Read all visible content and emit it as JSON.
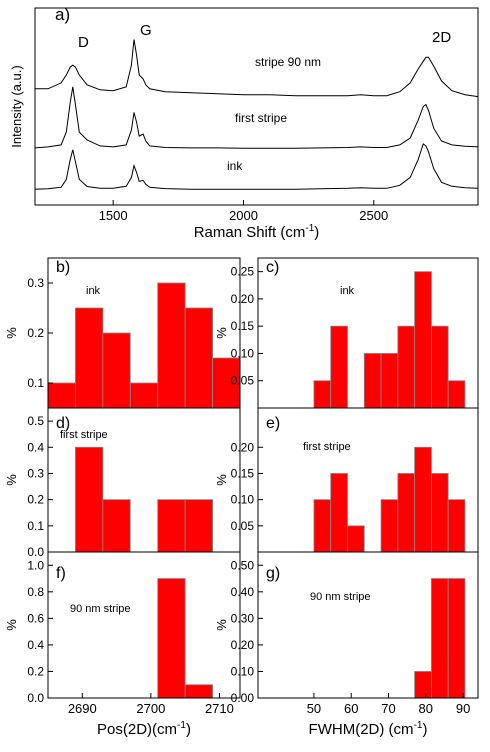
{
  "chart_data": [
    {
      "type": "line",
      "annotations": [
        "a)",
        "D",
        "G",
        "2D"
      ],
      "ylabel": "Intensity (a.u.)",
      "xlabel": [
        "Raman Shift (cm",
        "-1",
        ")"
      ],
      "x": [
        1200,
        1250,
        1300,
        1320,
        1335,
        1345,
        1355,
        1370,
        1400,
        1450,
        1500,
        1550,
        1570,
        1580,
        1590,
        1600,
        1615,
        1625,
        1640,
        1700,
        1800,
        1900,
        2000,
        2100,
        2200,
        2300,
        2400,
        2450,
        2500,
        2550,
        2600,
        2640,
        2670,
        2690,
        2700,
        2710,
        2730,
        2760,
        2800,
        2850,
        2900
      ],
      "series": [
        {
          "name": "stripe 90 nm",
          "color": "#000000",
          "values": [
            5.9,
            5.9,
            6.2,
            6.6,
            7.0,
            7.1,
            7.0,
            6.6,
            6.1,
            5.85,
            5.8,
            6.0,
            7.1,
            8.4,
            7.6,
            6.6,
            6.4,
            6.1,
            5.9,
            5.75,
            5.7,
            5.65,
            5.6,
            5.6,
            5.55,
            5.55,
            5.55,
            5.6,
            5.55,
            5.55,
            5.75,
            6.2,
            6.9,
            7.3,
            7.5,
            7.5,
            7.05,
            6.3,
            5.8,
            5.6,
            5.5
          ]
        },
        {
          "name": "first stripe",
          "color": "#000000",
          "values": [
            2.9,
            2.95,
            3.05,
            3.7,
            5.2,
            6.0,
            5.1,
            3.7,
            3.3,
            3.0,
            2.95,
            3.05,
            3.8,
            4.7,
            4.2,
            3.5,
            3.6,
            3.25,
            3.0,
            2.92,
            2.9,
            2.9,
            2.88,
            2.88,
            2.88,
            2.9,
            2.92,
            2.95,
            2.92,
            2.92,
            3.05,
            3.4,
            4.3,
            5.0,
            5.1,
            4.8,
            3.9,
            3.25,
            3.05,
            2.98,
            2.95
          ]
        },
        {
          "name": "ink",
          "color": "#000000",
          "values": [
            0.8,
            0.82,
            0.9,
            1.3,
            2.3,
            2.8,
            2.2,
            1.3,
            0.94,
            0.85,
            0.85,
            0.95,
            1.4,
            2.0,
            1.65,
            1.2,
            1.25,
            1.05,
            0.9,
            0.83,
            0.8,
            0.8,
            0.8,
            0.8,
            0.8,
            0.82,
            0.85,
            0.88,
            0.85,
            0.85,
            1.0,
            1.4,
            2.3,
            3.1,
            3.0,
            2.7,
            1.85,
            1.15,
            0.95,
            0.88,
            0.85
          ]
        }
      ],
      "xlim": [
        1200,
        2900
      ],
      "ylim": [
        0,
        10
      ],
      "xticks": [
        1500,
        2000,
        2500
      ]
    },
    {
      "type": "histogram",
      "annotations": [
        "b)",
        "ink"
      ],
      "ylabel": "%",
      "color": "#ff0000",
      "bins": [
        2685,
        2689,
        2693,
        2697,
        2701,
        2705,
        2709,
        2713
      ],
      "values": [
        0.1,
        0.25,
        0.2,
        0.1,
        0.3,
        0.25,
        0.15
      ],
      "xlim": [
        2685,
        2713
      ],
      "ylim": [
        0.05,
        0.35
      ],
      "yticks": [
        0.1,
        0.2,
        0.3
      ]
    },
    {
      "type": "histogram",
      "annotations": [
        "c)",
        "ink"
      ],
      "ylabel": "%",
      "color": "#ff0000",
      "bins": [
        50,
        54.5,
        59,
        63.5,
        68,
        72.5,
        77,
        81.5,
        86,
        90.5
      ],
      "values": [
        0.05,
        0.15,
        0,
        0.1,
        0.1,
        0.15,
        0.25,
        0.15,
        0.05
      ],
      "xlim": [
        35,
        94
      ],
      "ylim": [
        0,
        0.275
      ],
      "yticks": [
        0.05,
        {
          "value": 0.1,
          "label": "0.10"
        },
        0.15,
        {
          "value": 0.2,
          "label": "0.20"
        },
        0.25
      ]
    },
    {
      "type": "histogram",
      "annotations": [
        "d)",
        "first stripe"
      ],
      "ylabel": "%",
      "color": "#ff0000",
      "bins": [
        2685,
        2689,
        2693,
        2697,
        2701,
        2705,
        2709,
        2713
      ],
      "values": [
        0,
        0.4,
        0.2,
        0,
        0.2,
        0.2,
        0
      ],
      "xlim": [
        2685,
        2713
      ],
      "ylim": [
        0,
        0.55
      ],
      "yticks": [
        {
          "value": 0,
          "label": "0.0"
        },
        0.1,
        0.2,
        0.3,
        0.4,
        0.5
      ]
    },
    {
      "type": "histogram",
      "annotations": [
        "e)",
        "first stripe"
      ],
      "ylabel": "%",
      "color": "#ff0000",
      "bins": [
        50,
        54.5,
        59,
        63.5,
        68,
        72.5,
        77,
        81.5,
        86,
        90.5
      ],
      "values": [
        0.1,
        0.15,
        0.05,
        0,
        0.1,
        0.15,
        0.2,
        0.15,
        0.1
      ],
      "xlim": [
        35,
        94
      ],
      "ylim": [
        0,
        0.275
      ],
      "yticks": [
        0.05,
        {
          "value": 0.1,
          "label": "0.10"
        },
        0.15,
        {
          "value": 0.2,
          "label": "0.20"
        }
      ]
    },
    {
      "type": "histogram",
      "annotations": [
        "f)",
        "90 nm stripe"
      ],
      "ylabel": "%",
      "color": "#ff0000",
      "xlabel": [
        "Pos(2D)(cm",
        "-1",
        ")"
      ],
      "bins": [
        2685,
        2689,
        2693,
        2697,
        2701,
        2705,
        2709,
        2713
      ],
      "values": [
        0,
        0,
        0,
        0,
        0.9,
        0.1,
        0
      ],
      "xlim": [
        2685,
        2713
      ],
      "ylim": [
        0,
        1.1
      ],
      "xticks": [
        2690,
        2700,
        2710
      ],
      "yticks": [
        {
          "value": 0,
          "label": "0.0"
        },
        0.2,
        0.4,
        0.6,
        0.8,
        {
          "value": 1,
          "label": "1.0"
        }
      ]
    },
    {
      "type": "histogram",
      "annotations": [
        "g)",
        "90 nm stripe"
      ],
      "ylabel": "%",
      "color": "#ff0000",
      "xlabel": [
        "FWHM(2D) (cm",
        "-1",
        ")"
      ],
      "bins": [
        50,
        54.5,
        59,
        63.5,
        68,
        72.5,
        77,
        81.5,
        86,
        90.5
      ],
      "values": [
        0,
        0,
        0,
        0,
        0,
        0,
        0.1,
        0.45,
        0.45
      ],
      "xlim": [
        35,
        94
      ],
      "ylim": [
        0,
        0.55
      ],
      "xticks": [
        50,
        60,
        70,
        80,
        90
      ],
      "yticks": [
        {
          "value": 0,
          "label": "0.00"
        },
        {
          "value": 0.1,
          "label": "0.10"
        },
        {
          "value": 0.2,
          "label": "0.20"
        },
        {
          "value": 0.3,
          "label": "0.30"
        },
        {
          "value": 0.4,
          "label": "0.40"
        },
        {
          "value": 0.5,
          "label": "0.50"
        }
      ]
    }
  ]
}
